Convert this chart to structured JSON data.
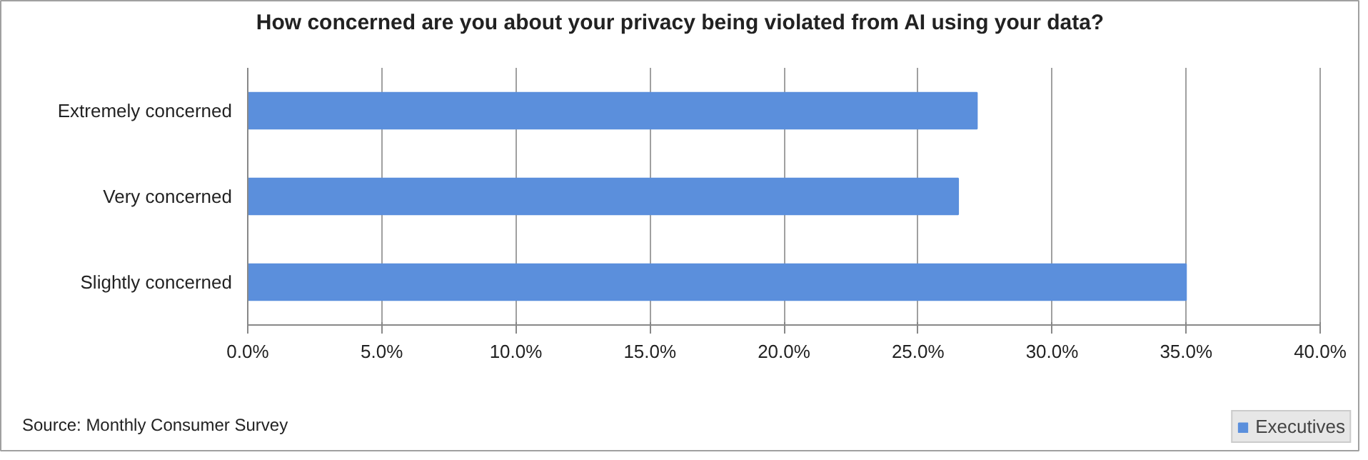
{
  "chart_data": {
    "type": "bar",
    "orientation": "horizontal",
    "title": "How concerned are you about your privacy being violated from AI using your data?",
    "categories": [
      "Extremely concerned",
      "Very concerned",
      "Slightly concerned"
    ],
    "series": [
      {
        "name": "Executives",
        "color": "#5b8fdc",
        "values": [
          27.2,
          26.5,
          35.0
        ]
      }
    ],
    "xlim": [
      0,
      40
    ],
    "xticks": [
      {
        "value": 0,
        "label": "0.0%"
      },
      {
        "value": 5,
        "label": "5.0%"
      },
      {
        "value": 10,
        "label": "10.0%"
      },
      {
        "value": 15,
        "label": "15.0%"
      },
      {
        "value": 20,
        "label": "20.0%"
      },
      {
        "value": 25,
        "label": "25.0%"
      },
      {
        "value": 30,
        "label": "30.0%"
      },
      {
        "value": 35,
        "label": "35.0%"
      },
      {
        "value": 40,
        "label": "40.0%"
      }
    ],
    "grid": "x",
    "legend": "bottom right",
    "annotations": [
      "Source: Monthly Consumer Survey"
    ]
  }
}
